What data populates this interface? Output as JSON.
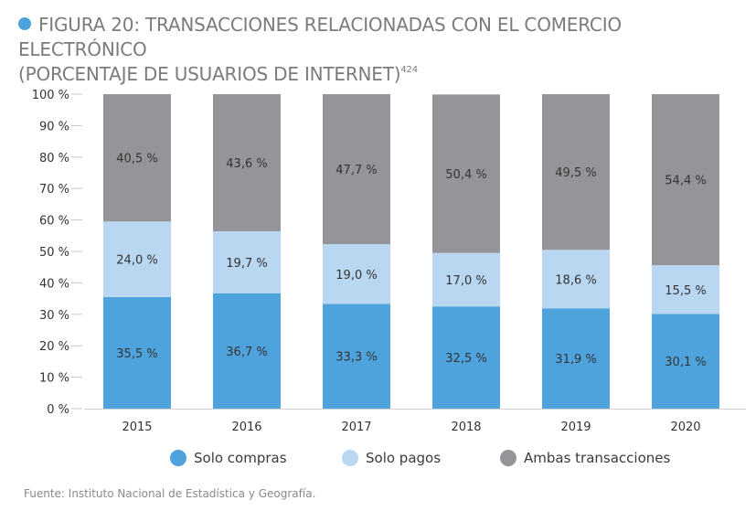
{
  "header": {
    "title_line1": "FIGURA 20: TRANSACCIONES RELACIONADAS CON EL COMERCIO ELECTRÓNICO",
    "title_line2": "(PORCENTAJE DE USUARIOS DE INTERNET)",
    "footnote": "424",
    "bullet_color": "#4ea3dc"
  },
  "chart_data": {
    "type": "bar",
    "stacked": true,
    "title": "FIGURA 20: TRANSACCIONES RELACIONADAS CON EL COMERCIO ELECTRÓNICO (PORCENTAJE DE USUARIOS DE INTERNET)",
    "xlabel": "",
    "ylabel": "",
    "ylim": [
      0,
      100
    ],
    "y_ticks": [
      0,
      10,
      20,
      30,
      40,
      50,
      60,
      70,
      80,
      90,
      100
    ],
    "y_tick_labels": [
      "0 %",
      "10 %",
      "20 %",
      "30 %",
      "40 %",
      "50 %",
      "60 %",
      "70 %",
      "80 %",
      "90 %",
      "100 %"
    ],
    "grid": false,
    "legend_position": "bottom",
    "categories": [
      "2015",
      "2016",
      "2017",
      "2018",
      "2019",
      "2020"
    ],
    "series": [
      {
        "name": "Solo compras",
        "color": "#4ea3dc",
        "values": [
          35.5,
          36.7,
          33.3,
          32.5,
          31.9,
          30.1
        ],
        "labels": [
          "35,5 %",
          "36,7 %",
          "33,3 %",
          "32,5 %",
          "31,9 %",
          "30,1 %"
        ]
      },
      {
        "name": "Solo pagos",
        "color": "#b9d7f0",
        "values": [
          24.0,
          19.7,
          19.0,
          17.0,
          18.6,
          15.5
        ],
        "labels": [
          "24,0 %",
          "19,7 %",
          "19,0 %",
          "17,0 %",
          "18,6 %",
          "15,5 %"
        ]
      },
      {
        "name": "Ambas transacciones",
        "color": "#939598",
        "values": [
          40.5,
          43.6,
          47.7,
          50.4,
          49.5,
          54.4
        ],
        "labels": [
          "40,5 %",
          "43,6 %",
          "47,7 %",
          "50,4 %",
          "49,5 %",
          "54,4 %"
        ]
      }
    ]
  },
  "legend": {
    "items": [
      "Solo compras",
      "Solo pagos",
      "Ambas transacciones"
    ]
  },
  "footer": {
    "source": "Fuente: Instituto Nacional de Estadística y Geografía."
  }
}
